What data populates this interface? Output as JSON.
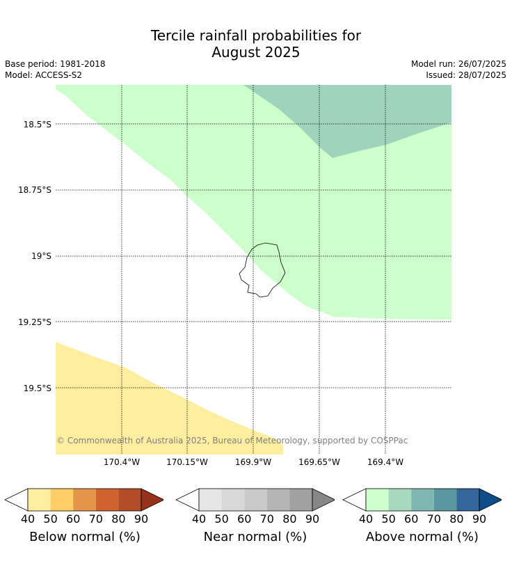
{
  "header": {
    "title_line1": "Tercile rainfall probabilities for",
    "title_line2": "August 2025",
    "base_period": "Base period: 1981-2018",
    "model": "Model: ACCESS-S2",
    "model_run": "Model run: 26/07/2025",
    "issued": "Issued: 28/07/2025"
  },
  "map": {
    "lat_labels": [
      "18.5°S",
      "18.75°S",
      "19°S",
      "19.25°S",
      "19.5°S"
    ],
    "lon_labels": [
      "170.4°W",
      "170.15°W",
      "169.9°W",
      "169.65°W",
      "169.4°W"
    ],
    "copyright": "© Commonwealth of Australia 2025, Bureau of Meteorology, supported by COSPPac",
    "colors": {
      "above_40": "#ccffcc",
      "above_50": "#a0d3bb",
      "below_40": "#ffee9f",
      "coast": "#000000",
      "grid": "#000000"
    },
    "regions": [
      {
        "name": "above-normal-40-50",
        "color": "#ccffcc"
      },
      {
        "name": "above-normal-50-60",
        "color": "#a0d3bb"
      },
      {
        "name": "below-normal-40-50",
        "color": "#ffee9f"
      }
    ]
  },
  "colorbars": [
    {
      "label": "Below normal (%)",
      "ticks": [
        "40",
        "50",
        "60",
        "70",
        "80",
        "90"
      ],
      "colors": [
        "#ffffff",
        "#ffee9f",
        "#ffce66",
        "#e49549",
        "#cf6330",
        "#b24c29",
        "#96321b"
      ]
    },
    {
      "label": "Near normal (%)",
      "ticks": [
        "40",
        "50",
        "60",
        "70",
        "80",
        "90"
      ],
      "colors": [
        "#ffffff",
        "#e6e6e6",
        "#d8d8d8",
        "#c9c9c9",
        "#b4b4b4",
        "#a1a1a1",
        "#878787"
      ]
    },
    {
      "label": "Above normal (%)",
      "ticks": [
        "40",
        "50",
        "60",
        "70",
        "80",
        "90"
      ],
      "colors": [
        "#ffffff",
        "#ccffcc",
        "#a6d9bd",
        "#7fb7b0",
        "#5a97a1",
        "#33669a",
        "#0e4c8a"
      ]
    }
  ]
}
